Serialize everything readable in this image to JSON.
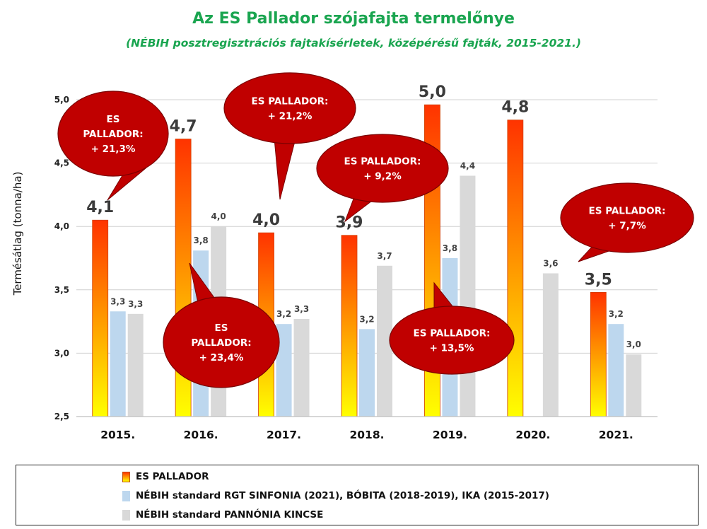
{
  "title": "Az ES Pallador szójafajta termelőnye",
  "subtitle": "(NÉBIH posztregisztrációs fajtakísérletek, középérésű fajták, 2015-2021.)",
  "chart_data": {
    "type": "bar",
    "ylabel": "Termésátlag (tonna/ha)",
    "ylim": [
      2.5,
      5.0
    ],
    "yticks": [
      "2,5",
      "3,0",
      "3,5",
      "4,0",
      "4,5",
      "5,0"
    ],
    "ytick_values": [
      2.5,
      3.0,
      3.5,
      4.0,
      4.5,
      5.0
    ],
    "grid": true,
    "legend_position": "bottom",
    "categories": [
      "2015.",
      "2016.",
      "2017.",
      "2018.",
      "2019.",
      "2020.",
      "2021."
    ],
    "series": [
      {
        "name": "ES PALLADOR",
        "values": [
          4.05,
          4.69,
          3.95,
          3.93,
          4.96,
          4.84,
          3.48
        ],
        "labels": [
          "4,1",
          "4,7",
          "4,0",
          "3,9",
          "5,0",
          "4,8",
          "3,5"
        ],
        "color_top": "#ff3300",
        "color_bottom": "#ffff00"
      },
      {
        "name": "NÉBIH standard RGT SINFONIA (2021), BÓBITA (2018-2019), IKA (2015-2017)",
        "values": [
          3.33,
          3.81,
          3.23,
          3.19,
          3.75,
          null,
          3.23
        ],
        "labels": [
          "3,3",
          "3,8",
          "3,2",
          "3,2",
          "3,8",
          "",
          "3,2"
        ],
        "color": "#bdd7ee"
      },
      {
        "name": "NÉBIH standard PANNÓNIA KINCSE",
        "values": [
          3.31,
          4.0,
          3.27,
          3.69,
          4.4,
          3.63,
          2.99
        ],
        "labels": [
          "3,3",
          "4,0",
          "3,3",
          "3,7",
          "4,4",
          "3,6",
          "3,0"
        ],
        "color": "#d9d9d9"
      }
    ],
    "annotations": [
      {
        "lines": [
          "ES",
          "PALLADOR:",
          "+ 21,3%"
        ],
        "category": "2015."
      },
      {
        "lines": [
          "ES",
          "PALLADOR:",
          "+ 23,4%"
        ],
        "category": "2016."
      },
      {
        "lines": [
          "ES PALLADOR:",
          "+ 21,2%"
        ],
        "category": "2017."
      },
      {
        "lines": [
          "ES PALLADOR:",
          "+ 9,2%"
        ],
        "category": "2018."
      },
      {
        "lines": [
          "ES PALLADOR:",
          "+ 13,5%"
        ],
        "category": "2019."
      },
      {
        "lines": [
          "ES PALLADOR:",
          "+ 7,7%"
        ],
        "category": "2021."
      }
    ],
    "callout_color": "#c00000"
  }
}
